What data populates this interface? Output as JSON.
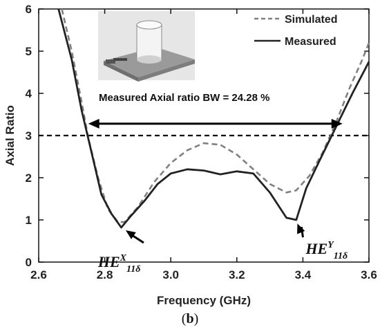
{
  "chart_data": {
    "type": "line",
    "title": "",
    "xlabel": "Frequency (GHz)",
    "ylabel": "Axial Ratio",
    "xlim": [
      2.6,
      3.6
    ],
    "ylim": [
      0,
      6
    ],
    "x_ticks": [
      "2.6",
      "2.8",
      "3.0",
      "3.2",
      "3.4",
      "3.6"
    ],
    "y_ticks": [
      "0",
      "1",
      "2",
      "3",
      "4",
      "5",
      "6"
    ],
    "series": [
      {
        "name": "Simulated",
        "style": "dashed",
        "color": "#808080",
        "x": [
          2.67,
          2.7,
          2.73,
          2.75,
          2.78,
          2.81,
          2.84,
          2.86,
          2.9,
          2.95,
          3.0,
          3.05,
          3.1,
          3.15,
          3.2,
          3.25,
          3.3,
          3.35,
          3.38,
          3.42,
          3.46,
          3.5,
          3.54,
          3.58,
          3.6
        ],
        "y": [
          6.0,
          5.0,
          3.8,
          2.95,
          2.0,
          1.25,
          0.95,
          0.95,
          1.3,
          1.9,
          2.35,
          2.65,
          2.82,
          2.78,
          2.55,
          2.2,
          1.85,
          1.65,
          1.7,
          2.05,
          2.6,
          3.3,
          4.1,
          4.8,
          5.2
        ]
      },
      {
        "name": "Measured",
        "style": "solid",
        "color": "#222222",
        "x": [
          2.66,
          2.7,
          2.73,
          2.76,
          2.79,
          2.82,
          2.85,
          2.88,
          2.92,
          2.96,
          3.0,
          3.05,
          3.1,
          3.15,
          3.2,
          3.25,
          3.3,
          3.35,
          3.38,
          3.41,
          3.45,
          3.5,
          3.55,
          3.6
        ],
        "y": [
          6.0,
          4.8,
          3.6,
          2.6,
          1.6,
          1.15,
          0.82,
          1.1,
          1.45,
          1.85,
          2.1,
          2.2,
          2.17,
          2.08,
          2.15,
          2.1,
          1.65,
          1.05,
          1.0,
          1.75,
          2.4,
          3.2,
          4.0,
          4.75
        ]
      }
    ],
    "reference_line": {
      "y": 3,
      "style": "dashed",
      "color": "#000000"
    },
    "bandwidth_arrow": {
      "x_start": 2.75,
      "x_end": 3.52,
      "y": 3.28
    },
    "annotation": "Measured Axial ratio BW = 24.28 %",
    "mode_labels": [
      {
        "base": "HE",
        "sup": "X",
        "sub": "11δ",
        "point_x": 2.855,
        "point_y": 0.82
      },
      {
        "base": "HE",
        "sup": "Y",
        "sub": "11δ",
        "point_x": 3.375,
        "point_y": 0.98
      }
    ],
    "legend": {
      "position": "top-right",
      "entries": [
        "Simulated",
        "Measured"
      ]
    },
    "grid": false,
    "inset": "photo of fabricated antenna prototype"
  },
  "caption": {
    "open": "(",
    "letter": "b",
    "close": ")"
  }
}
